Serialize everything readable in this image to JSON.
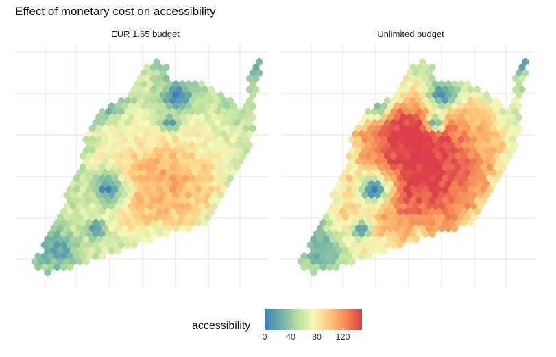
{
  "chart_data": [
    {
      "type": "heatmap",
      "title": "Effect of monetary cost on accessibility",
      "panel_label": "EUR 1.65 budget",
      "colorbar_label": "accessibility",
      "colorbar_ticks": [
        0,
        40,
        80,
        120
      ],
      "colorbar_range": [
        0,
        150
      ],
      "hotspot_peak_accessibility": 110,
      "grid": true
    },
    {
      "type": "heatmap",
      "panel_label": "Unlimited budget",
      "colorbar_label": "accessibility",
      "colorbar_ticks": [
        0,
        40,
        80,
        120
      ],
      "colorbar_range": [
        0,
        150
      ],
      "hotspot_peak_accessibility": 150,
      "grid": true
    }
  ],
  "legend": {
    "title": "accessibility",
    "ticks": [
      "0",
      "40",
      "80",
      "120"
    ],
    "colors": [
      "#3a80b9",
      "#6fb0a6",
      "#b5dd9e",
      "#f6f8b8",
      "#fdc679",
      "#f58a55",
      "#dc3e4a"
    ]
  }
}
